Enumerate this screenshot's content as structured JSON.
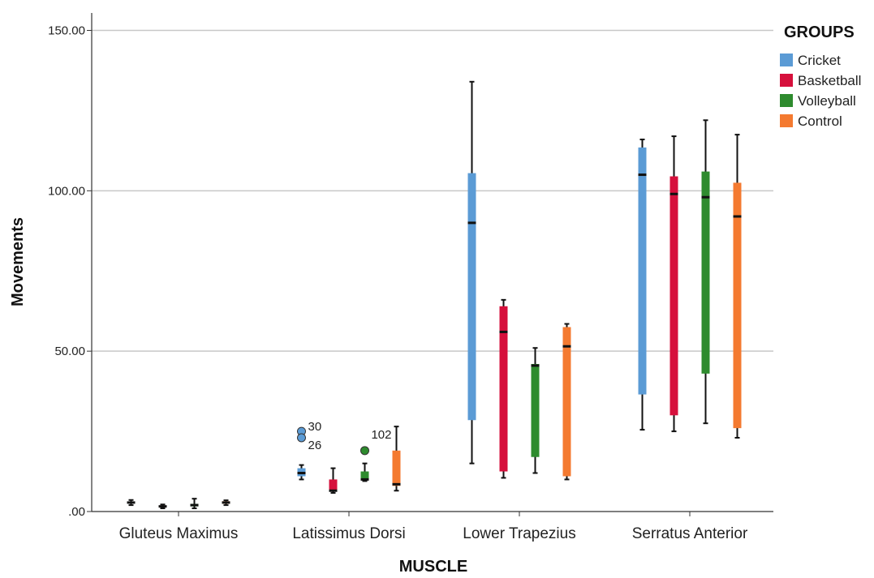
{
  "chart_data": {
    "type": "boxplot",
    "xlabel": "MUSCLE",
    "ylabel": "Movements",
    "ylim": [
      0,
      150
    ],
    "yticks": [
      ".00",
      "50.00",
      "100.00",
      "150.00"
    ],
    "ytick_values": [
      0,
      50,
      100,
      150
    ],
    "grid": "horizontal",
    "legend": {
      "title": "GROUPS",
      "placement": "top-right"
    },
    "categories": [
      "Gluteus Maximus",
      "Latissimus Dorsi",
      "Lower Trapezius",
      "Serratus Anterior"
    ],
    "series": [
      {
        "name": "Cricket",
        "color": "#5b9bd5",
        "boxes": [
          {
            "min": 2.0,
            "q1": 2.5,
            "median": 2.8,
            "q3": 3.1,
            "max": 3.6
          },
          {
            "min": 10.0,
            "q1": 11.0,
            "median": 12.0,
            "q3": 13.5,
            "max": 14.5,
            "outliers": [
              {
                "value": 25.0,
                "label": "30"
              },
              {
                "value": 23.0,
                "label": "26"
              }
            ]
          },
          {
            "min": 15.0,
            "q1": 28.5,
            "median": 90.0,
            "q3": 105.5,
            "max": 134.0
          },
          {
            "min": 25.5,
            "q1": 36.5,
            "median": 105.0,
            "q3": 113.5,
            "max": 116.0
          }
        ]
      },
      {
        "name": "Basketball",
        "color": "#d6103c",
        "boxes": [
          {
            "min": 1.0,
            "q1": 1.3,
            "median": 1.6,
            "q3": 1.9,
            "max": 2.2
          },
          {
            "min": 5.8,
            "q1": 6.2,
            "median": 6.5,
            "q3": 10.0,
            "max": 13.5
          },
          {
            "min": 10.5,
            "q1": 12.5,
            "median": 56.0,
            "q3": 64.0,
            "max": 66.0
          },
          {
            "min": 25.0,
            "q1": 30.0,
            "median": 99.0,
            "q3": 104.5,
            "max": 117.0
          }
        ]
      },
      {
        "name": "Volleyball",
        "color": "#2e8b2e",
        "boxes": [
          {
            "min": 1.0,
            "q1": 1.6,
            "median": 2.0,
            "q3": 2.4,
            "max": 4.0
          },
          {
            "min": 9.5,
            "q1": 9.8,
            "median": 10.0,
            "q3": 12.5,
            "max": 15.0,
            "outliers": [
              {
                "value": 19.0,
                "label": ""
              }
            ]
          },
          {
            "min": 12.0,
            "q1": 17.0,
            "median": 45.5,
            "q3": 46.0,
            "max": 51.0
          },
          {
            "min": 27.5,
            "q1": 43.0,
            "median": 98.0,
            "q3": 106.0,
            "max": 122.0
          }
        ]
      },
      {
        "name": "Control",
        "color": "#f47a30",
        "boxes": [
          {
            "min": 2.0,
            "q1": 2.4,
            "median": 2.8,
            "q3": 3.2,
            "max": 3.5
          },
          {
            "min": 6.5,
            "q1": 8.0,
            "median": 8.5,
            "q3": 19.0,
            "max": 26.5,
            "outliers": [
              {
                "value": 26.5,
                "label": "102",
                "label_only": true
              }
            ]
          },
          {
            "min": 10.0,
            "q1": 11.0,
            "median": 51.5,
            "q3": 57.5,
            "max": 58.5
          },
          {
            "min": 23.0,
            "q1": 26.0,
            "median": 92.0,
            "q3": 102.5,
            "max": 117.5
          }
        ]
      }
    ]
  }
}
